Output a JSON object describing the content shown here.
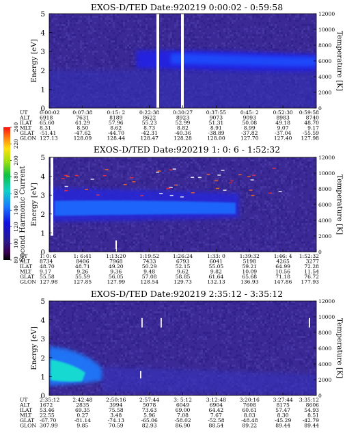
{
  "colorbar": {
    "label": "Second Harmonic Current",
    "ticks": [
      "80",
      "100",
      "120",
      "140",
      "160",
      "180",
      "200",
      "220",
      "240"
    ]
  },
  "chart_data": [
    {
      "type": "heatmap",
      "title": "EXOS-D/TED   Date:920219  0:00:02 - 0:59:58",
      "ylabel": "Energy [eV]",
      "y2label": "Temperature [K]",
      "ylim": [
        0,
        5
      ],
      "y2lim": [
        0,
        12000
      ],
      "yticks": [
        "0",
        "1",
        "2",
        "3",
        "4",
        "5"
      ],
      "y2ticks": [
        "0",
        "2000",
        "4000",
        "6000",
        "8000",
        "10000",
        "12000"
      ],
      "row_labels": [
        "UT",
        "ALT",
        "ILAT",
        "MLT",
        "GLAT",
        "GLON"
      ],
      "columns": [
        [
          "0:00:02",
          "6918",
          "65.60",
          "8.31",
          "-51.41",
          "127.13"
        ],
        [
          "0:07:38",
          "7631",
          "61.29",
          "8.50",
          "-47.62",
          "128.09"
        ],
        [
          "0:15: 2",
          "8189",
          "57.96",
          "8.62",
          "-44.70",
          "128.44"
        ],
        [
          "0:22:38",
          "8622",
          "55.23",
          "8.73",
          "-42.31",
          "128.47"
        ],
        [
          "0:30:27",
          "8923",
          "52.99",
          "8.82",
          "-40.36",
          "128.28"
        ],
        [
          "0:37:55",
          "9073",
          "51.31",
          "8.91",
          "-38.89",
          "128.00"
        ],
        [
          "0:45: 2",
          "9093",
          "50.08",
          "8.99",
          "-37.82",
          "127.70"
        ],
        [
          "0:52:30",
          "8983",
          "49.18",
          "9.07",
          "-37.04",
          "127.40"
        ],
        [
          "0:59:58",
          "8740",
          "48.70",
          "9.17",
          "-55.59",
          "127.98"
        ]
      ]
    },
    {
      "type": "heatmap",
      "title": "EXOS-D/TED   Date:920219  1: 0: 6 - 1:52:32",
      "ylabel": "Energy [eV]",
      "y2label": "Temperature [K]",
      "ylim": [
        0,
        5
      ],
      "y2lim": [
        0,
        12000
      ],
      "yticks": [
        "0",
        "1",
        "2",
        "3",
        "4",
        "5"
      ],
      "y2ticks": [
        "0",
        "2000",
        "4000",
        "6000",
        "8000",
        "10000",
        "12000"
      ],
      "row_labels": [
        "UT",
        "ALT",
        "ILAT",
        "MLT",
        "GLAT",
        "GLON"
      ],
      "columns": [
        [
          "1: 0: 6",
          "8734",
          "48.70",
          "9.17",
          "55.58",
          "127.98"
        ],
        [
          "1: 6:41",
          "8406",
          "48.71",
          "9.26",
          "55.59",
          "127.85"
        ],
        [
          "1:13:20",
          "7968",
          "49.20",
          "9.36",
          "56.05",
          "127.99"
        ],
        [
          "1:19:52",
          "7433",
          "50.29",
          "9.48",
          "57.08",
          "128.54"
        ],
        [
          "1:26:24",
          "6793",
          "52.15",
          "9.62",
          "58.85",
          "129.73"
        ],
        [
          "1:33: 0",
          "6041",
          "55.05",
          "9.82",
          "61.64",
          "132.13"
        ],
        [
          "1:39:32",
          "5198",
          "59.21",
          "10.09",
          "65.68",
          "136.93"
        ],
        [
          "1:46: 4",
          "4265",
          "64.99",
          "10.56",
          "71.18",
          "147.86"
        ],
        [
          "1:52:32",
          "3277",
          "72.28",
          "11.54",
          "76.72",
          "177.93"
        ]
      ]
    },
    {
      "type": "heatmap",
      "title": "EXOS-D/TED   Date:920219  2:35:12 - 3:35:12",
      "ylabel": "Energy [eV]",
      "y2label": "Temperature [K]",
      "ylim": [
        0,
        5
      ],
      "y2lim": [
        0,
        12000
      ],
      "yticks": [
        "0",
        "1",
        "2",
        "3",
        "4",
        "5"
      ],
      "y2ticks": [
        "0",
        "2000",
        "4000",
        "6000",
        "8000",
        "10000",
        "12000"
      ],
      "row_labels": [
        "UT",
        "ALT",
        "ILAT",
        "MLT",
        "GLAT",
        "GLON"
      ],
      "columns": [
        [
          "2:35:12",
          "1672",
          "53.46",
          "22.55",
          "-67.70",
          "307.99"
        ],
        [
          "2:42:48",
          "2835",
          "69.35",
          "0.27",
          "-81.14",
          "9.85"
        ],
        [
          "2:50:16",
          "3994",
          "75.58",
          "3.48",
          "-74.13",
          "70.59"
        ],
        [
          "2:57:44",
          "5078",
          "73.63",
          "5.96",
          "-65.06",
          "82.93"
        ],
        [
          "3: 5:12",
          "6049",
          "69.00",
          "7.08",
          "-58.02",
          "86.90"
        ],
        [
          "3:12:48",
          "6904",
          "64.42",
          "7.67",
          "-52.58",
          "88.54"
        ],
        [
          "3:20:16",
          "7608",
          "60.61",
          "8.03",
          "-48.48",
          "89.22"
        ],
        [
          "3:27:44",
          "8175",
          "57.47",
          "8.30",
          "-45.29",
          "89.44"
        ],
        [
          "3:35:12",
          "8606",
          "54.93",
          "8.51",
          "-42.79",
          "89.44"
        ]
      ]
    }
  ]
}
